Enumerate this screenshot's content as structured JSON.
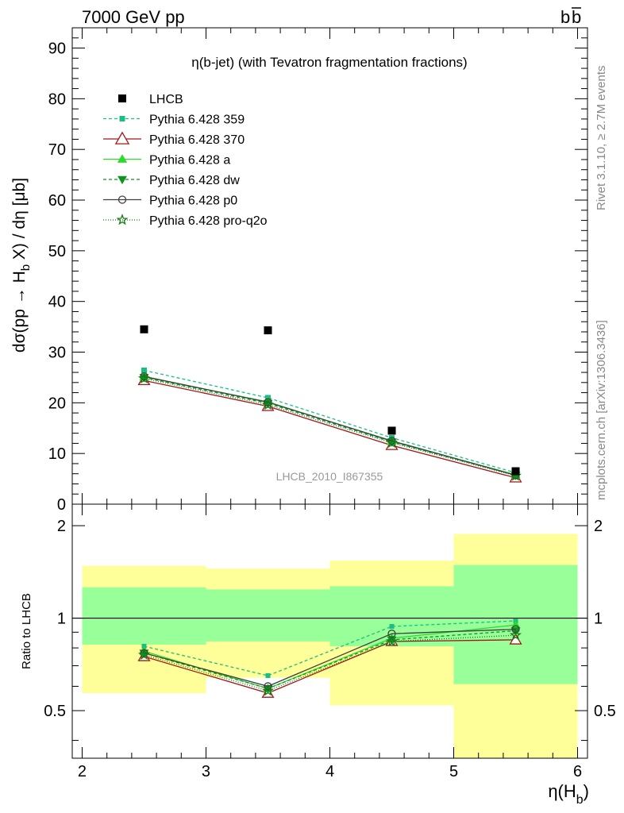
{
  "header": {
    "left": "7000 GeV pp",
    "right": "b",
    "right_bar": "b"
  },
  "side": {
    "rivet": "Rivet 3.1.10, ≥ 2.7M events",
    "mcplots": "mcplots.cern.ch [arXiv:1306.3436]"
  },
  "chart_data": [
    {
      "type": "line",
      "title": "η(b-jet) (with Tevatron fragmentation fractions)",
      "watermark": "LHCB_2010_I867355",
      "ylabel": "dσ(pp → H_b X) / dη [μb]",
      "xlim": [
        1.92,
        6.08
      ],
      "ylim": [
        0,
        94
      ],
      "yticks": [
        "0",
        "10",
        "20",
        "30",
        "40",
        "50",
        "60",
        "70",
        "80",
        "90"
      ],
      "x": [
        2.5,
        3.5,
        4.5,
        5.5
      ],
      "data": {
        "name": "LHCB",
        "color": "#000000",
        "values": [
          34.5,
          34.3,
          14.5,
          6.5
        ],
        "bins": [
          [
            2,
            3
          ],
          [
            3,
            4
          ],
          [
            4,
            5
          ],
          [
            5,
            6
          ]
        ]
      },
      "series": [
        {
          "name": "Pythia 6.428 359",
          "color": "#19bf82",
          "dash": "4,3",
          "marker": "square",
          "values": [
            26.4,
            21.0,
            13.1,
            6.2
          ]
        },
        {
          "name": "Pythia 6.428 370",
          "color": "#a3161a",
          "dash": "",
          "marker": "triangle-open",
          "values": [
            24.4,
            19.3,
            11.6,
            5.2
          ]
        },
        {
          "name": "Pythia 6.428 a",
          "color": "#2dd92d",
          "dash": "",
          "marker": "triangle",
          "values": [
            25.1,
            20.2,
            12.4,
            5.8
          ]
        },
        {
          "name": "Pythia 6.428 dw",
          "color": "#0f9420",
          "dash": "4,3",
          "marker": "triangle-down",
          "values": [
            25.0,
            19.9,
            12.3,
            5.7
          ]
        },
        {
          "name": "Pythia 6.428 p0",
          "color": "#404040",
          "dash": "",
          "marker": "circle-open",
          "values": [
            25.2,
            20.1,
            12.5,
            5.7
          ]
        },
        {
          "name": "Pythia 6.428 pro-q2o",
          "color": "#127a12",
          "dash": "1,2",
          "marker": "star-open",
          "values": [
            24.8,
            19.6,
            12.1,
            5.6
          ]
        }
      ]
    },
    {
      "type": "line",
      "ylabel": "Ratio to LHCB",
      "xlabel": "η(H_b)",
      "xlim": [
        1.92,
        6.08
      ],
      "ylim": [
        0.35,
        2.35
      ],
      "yticks": [
        "0.5",
        "1",
        "2"
      ],
      "xticks": [
        "2",
        "3",
        "4",
        "5",
        "6"
      ],
      "bands": {
        "bins": [
          [
            2,
            3
          ],
          [
            3,
            4
          ],
          [
            4,
            5
          ],
          [
            5,
            6
          ]
        ],
        "yellow": [
          [
            0.57,
            1.48
          ],
          [
            0.64,
            1.45
          ],
          [
            0.52,
            1.54
          ],
          [
            0.35,
            1.88
          ]
        ],
        "green": [
          [
            0.82,
            1.26
          ],
          [
            0.84,
            1.24
          ],
          [
            0.81,
            1.27
          ],
          [
            0.61,
            1.49
          ]
        ]
      },
      "x": [
        2.5,
        3.5,
        4.5,
        5.5
      ],
      "series": [
        {
          "name": "Pythia 6.428 359",
          "values": [
            0.81,
            0.65,
            0.94,
            0.98
          ]
        },
        {
          "name": "Pythia 6.428 370",
          "values": [
            0.75,
            0.57,
            0.84,
            0.85
          ]
        },
        {
          "name": "Pythia 6.428 a",
          "values": [
            0.78,
            0.59,
            0.86,
            0.95
          ]
        },
        {
          "name": "Pythia 6.428 dw",
          "values": [
            0.77,
            0.59,
            0.85,
            0.91
          ]
        },
        {
          "name": "Pythia 6.428 p0",
          "values": [
            0.77,
            0.6,
            0.89,
            0.92
          ]
        },
        {
          "name": "Pythia 6.428 pro-q2o",
          "values": [
            0.76,
            0.58,
            0.84,
            0.88
          ]
        }
      ]
    }
  ]
}
